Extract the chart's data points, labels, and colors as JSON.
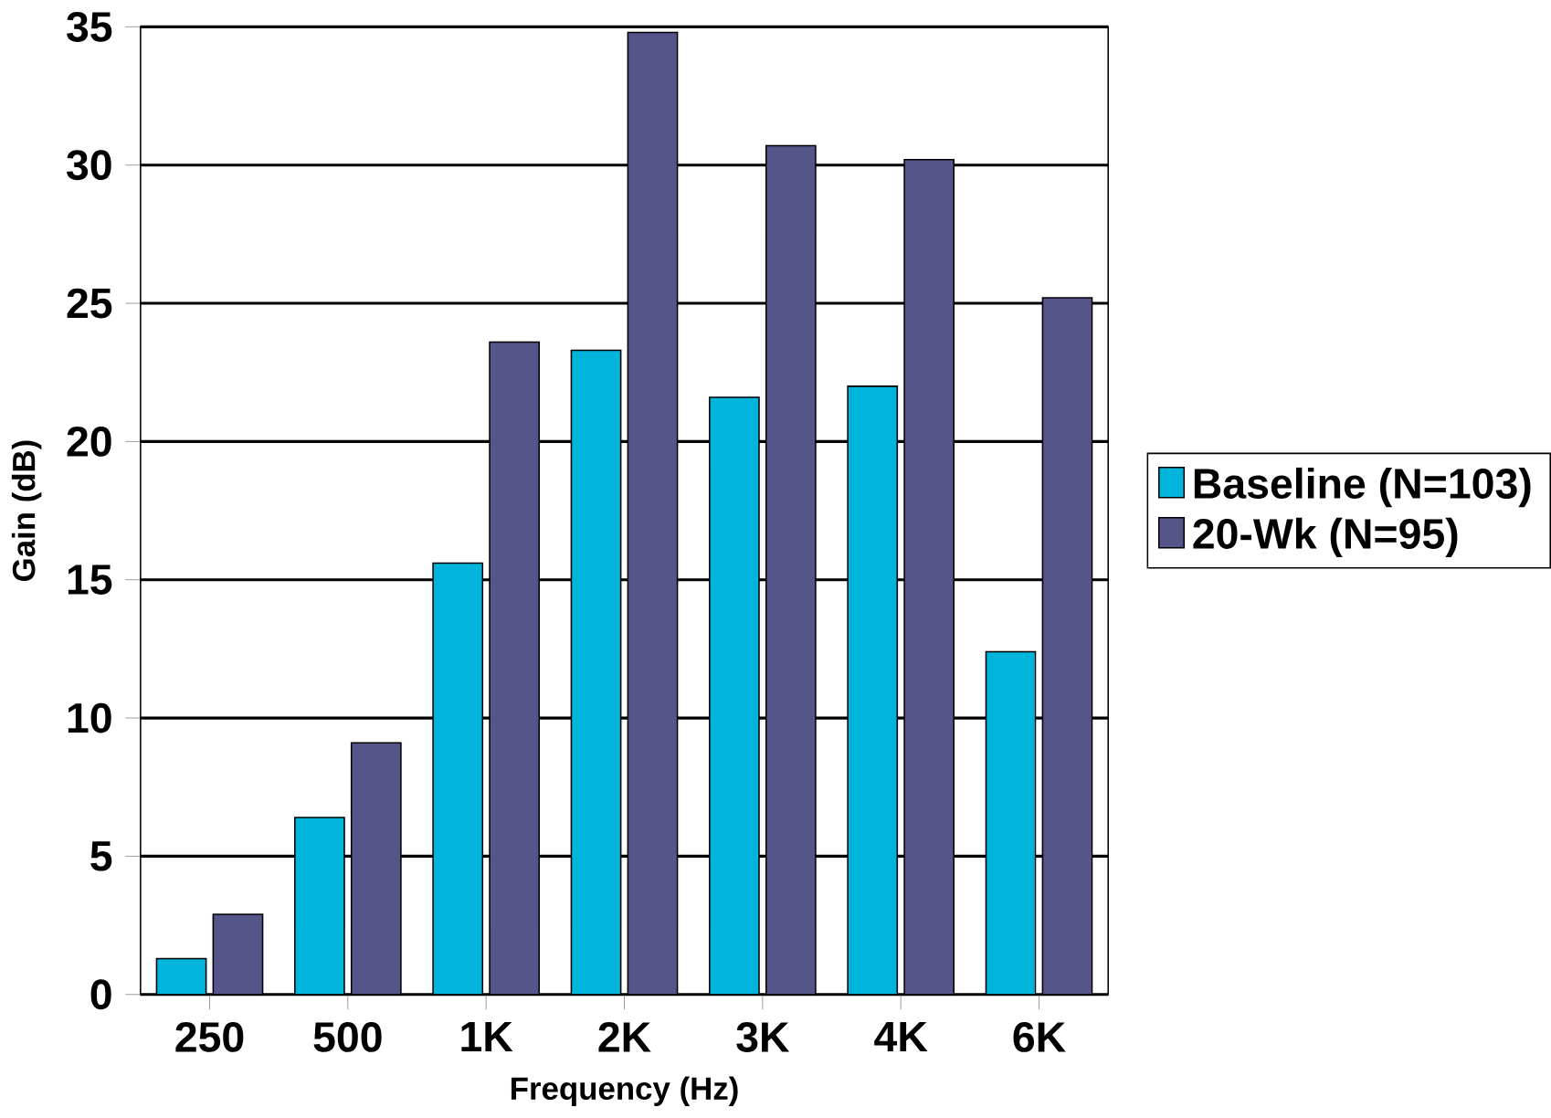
{
  "chart_data": {
    "type": "bar",
    "xlabel": "Frequency (Hz)",
    "ylabel": "Gain (dB)",
    "categories": [
      "250",
      "500",
      "1K",
      "2K",
      "3K",
      "4K",
      "6K"
    ],
    "series": [
      {
        "name": "Baseline (N=103)",
        "color": "#00b4dc",
        "values": [
          1.3,
          6.4,
          15.6,
          23.3,
          21.6,
          22.0,
          12.4
        ]
      },
      {
        "name": "20-Wk (N=95)",
        "color": "#55558a",
        "values": [
          2.9,
          9.1,
          23.6,
          34.8,
          30.7,
          30.2,
          25.2
        ]
      }
    ],
    "ylim": [
      0,
      35
    ],
    "yticks": [
      0,
      5,
      10,
      15,
      20,
      25,
      30,
      35
    ],
    "grid": "y",
    "legend": "right"
  }
}
